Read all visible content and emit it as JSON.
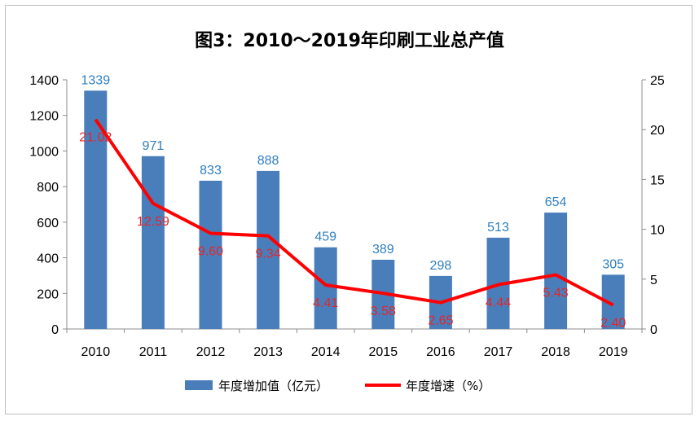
{
  "chart_data": {
    "type": "bar",
    "title": "图3：2010～2019年印刷工业总产值",
    "categories": [
      "2010",
      "2011",
      "2012",
      "2013",
      "2014",
      "2015",
      "2016",
      "2017",
      "2018",
      "2019"
    ],
    "series": [
      {
        "name": "年度增加值（亿元）",
        "type": "bar",
        "axis": "left",
        "color": "#4a7ebb",
        "values": [
          1339,
          971,
          833,
          888,
          459,
          389,
          298,
          513,
          654,
          305
        ],
        "labels": [
          "1339",
          "971",
          "833",
          "888",
          "459",
          "389",
          "298",
          "513",
          "654",
          "305"
        ]
      },
      {
        "name": "年度增速（%）",
        "type": "line",
        "axis": "right",
        "color": "#ff0000",
        "values": [
          21.02,
          12.59,
          9.6,
          9.34,
          4.41,
          3.58,
          2.65,
          4.44,
          5.43,
          2.4
        ],
        "labels": [
          "21.02",
          "12.59",
          "9.60",
          "9.34",
          "4.41",
          "3.58",
          "2.65",
          "4.44",
          "5.43",
          "2.40"
        ]
      }
    ],
    "y_left": {
      "ylim": [
        0,
        1400
      ],
      "ticks": [
        "0",
        "200",
        "400",
        "600",
        "800",
        "1000",
        "1200",
        "1400"
      ]
    },
    "y_right": {
      "ylim": [
        0,
        25
      ],
      "ticks": [
        "0",
        "5",
        "10",
        "15",
        "20",
        "25"
      ]
    },
    "grid": false,
    "legend": "bottom"
  }
}
